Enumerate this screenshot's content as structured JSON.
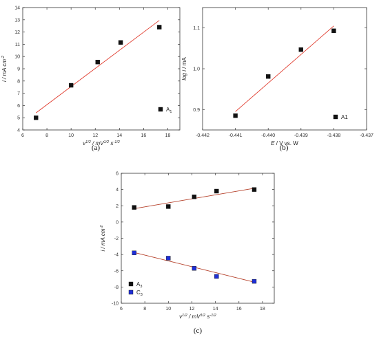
{
  "chart_data": [
    {
      "type": "scatter",
      "panel_label": "(a)",
      "xlabel_main": "v",
      "xlabel_sup1": "1/2",
      "xlabel_mid": " / mV",
      "xlabel_sup2": "1/2",
      "xlabel_end": " s",
      "xlabel_sup3": "-1/2",
      "ylabel_main": "i / mA cm",
      "ylabel_sup": "-2",
      "xlim": [
        6,
        19
      ],
      "ylim": [
        4,
        14
      ],
      "xticks": [
        "6",
        "8",
        "10",
        "12",
        "14",
        "16",
        "18"
      ],
      "yticks": [
        "4",
        "5",
        "6",
        "7",
        "8",
        "9",
        "10",
        "11",
        "12",
        "13",
        "14"
      ],
      "series": [
        {
          "name": "A",
          "name_sub": "1",
          "color": "#111111",
          "x": [
            7.1,
            10.0,
            12.2,
            14.1,
            17.3
          ],
          "y": [
            5.0,
            7.65,
            9.55,
            11.15,
            12.4
          ],
          "fit": {
            "x": [
              7.1,
              17.3
            ],
            "y": [
              5.4,
              12.95
            ],
            "color": "#e0392b"
          }
        }
      ]
    },
    {
      "type": "scatter",
      "panel_label": "(b)",
      "xlabel_main": "E",
      "xlabel_rest": " / V vs. W",
      "ylabel_main": "log i",
      "ylabel_rest": " / mA",
      "xlim": [
        -0.442,
        -0.437
      ],
      "ylim": [
        0.85,
        1.15
      ],
      "xticks": [
        "-0.442",
        "-0.441",
        "-0.440",
        "-0.439",
        "-0.438",
        "-0.437"
      ],
      "yticks": [
        "0.9",
        "1.0",
        "1.1"
      ],
      "ytick_values": [
        0.9,
        1.0,
        1.1
      ],
      "series": [
        {
          "name": "A1",
          "color": "#111111",
          "x": [
            -0.441,
            -0.44,
            -0.439,
            -0.438
          ],
          "y": [
            0.885,
            0.981,
            1.047,
            1.093
          ],
          "fit": {
            "x": [
              -0.441,
              -0.438
            ],
            "y": [
              0.895,
              1.105
            ],
            "color": "#e0392b"
          }
        }
      ]
    },
    {
      "type": "scatter",
      "panel_label": "(c)",
      "xlabel_main": "v",
      "xlabel_sup1": "1/2",
      "xlabel_mid": " / mV",
      "xlabel_sup2": "1/2",
      "xlabel_end": " s",
      "xlabel_sup3": "-1/2",
      "ylabel_main": "i / mA cm",
      "ylabel_sup": "-2",
      "xlim": [
        6,
        19
      ],
      "ylim": [
        -10,
        6
      ],
      "xticks": [
        "6",
        "8",
        "10",
        "12",
        "14",
        "16",
        "18"
      ],
      "yticks": [
        "-10",
        "-8",
        "-6",
        "-4",
        "-2",
        "0",
        "2",
        "4",
        "6"
      ],
      "series": [
        {
          "name": "A",
          "name_sub": "3",
          "color": "#111111",
          "x": [
            7.1,
            10.0,
            12.2,
            14.1,
            17.3
          ],
          "y": [
            1.8,
            1.9,
            3.1,
            3.8,
            4.0
          ],
          "fit": {
            "x": [
              7.1,
              17.3
            ],
            "y": [
              1.65,
              4.15
            ],
            "color": "#b5402a"
          }
        },
        {
          "name": "C",
          "name_sub": "3",
          "color": "#1f2fd6",
          "x": [
            7.1,
            10.0,
            12.2,
            14.1,
            17.3
          ],
          "y": [
            -3.8,
            -4.45,
            -5.7,
            -6.7,
            -7.3
          ],
          "fit": {
            "x": [
              7.1,
              17.3
            ],
            "y": [
              -3.75,
              -7.4
            ],
            "color": "#b5402a"
          }
        }
      ]
    }
  ]
}
